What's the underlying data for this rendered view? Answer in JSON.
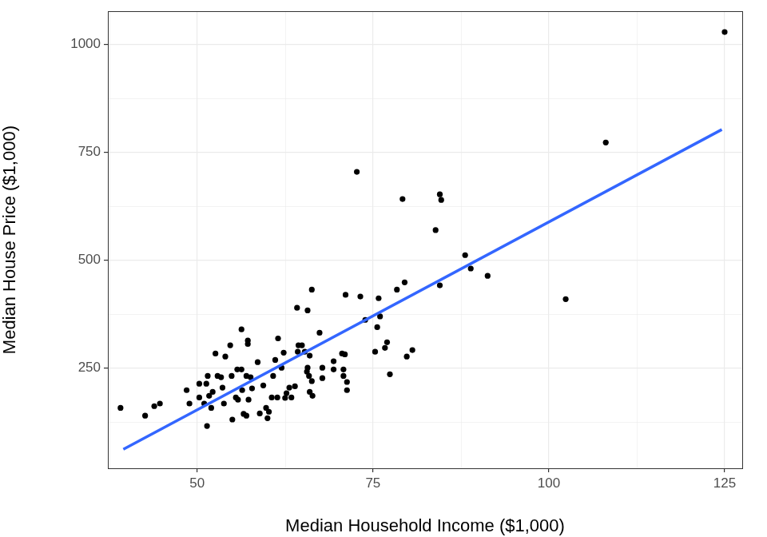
{
  "chart_data": {
    "type": "scatter",
    "x_label": "Median Household Income ($1,000)",
    "y_label": "Median House Price ($1,000)",
    "xlim": [
      37.3,
      127.5
    ],
    "ylim": [
      17,
      1076
    ],
    "xticks": [
      50,
      75,
      100,
      125
    ],
    "yticks": [
      250,
      500,
      750,
      1000
    ],
    "grid": true,
    "series": [
      {
        "type": "scatter",
        "color": "#000000",
        "marker": "circle",
        "x": [
          39.1,
          42.6,
          43.9,
          44.7,
          48.5,
          48.9,
          50.3,
          50.3,
          51.4,
          51.3,
          51.5,
          51.7,
          51.0,
          52.0,
          52.2,
          52.6,
          52.9,
          53.4,
          53.6,
          53.8,
          54.0,
          54.7,
          54.9,
          55.0,
          55.5,
          55.7,
          55.8,
          56.3,
          56.3,
          56.4,
          56.6,
          57.0,
          57.2,
          57.2,
          57.3,
          57.6,
          57.8,
          57.0,
          58.6,
          58.9,
          59.4,
          59.8,
          60.0,
          60.2,
          60.6,
          60.8,
          61.1,
          61.4,
          61.5,
          62.0,
          62.3,
          62.5,
          62.7,
          63.1,
          63.4,
          63.9,
          64.2,
          64.3,
          64.4,
          64.9,
          65.3,
          65.6,
          65.7,
          65.7,
          65.9,
          66.0,
          66.3,
          66.3,
          66.4,
          66.0,
          67.4,
          67.8,
          67.8,
          69.4,
          69.4,
          70.6,
          71.0,
          70.8,
          70.8,
          71.1,
          71.3,
          71.3,
          72.7,
          73.2,
          73.9,
          75.3,
          75.6,
          75.8,
          76.0,
          76.7,
          77.0,
          77.4,
          78.4,
          79.2,
          79.5,
          79.8,
          80.6,
          83.9,
          84.5,
          84.7,
          84.5,
          88.1,
          88.9,
          91.3,
          102.4,
          108.1,
          125.0
        ],
        "values": [
          157,
          139,
          161,
          167,
          198,
          167,
          213,
          181,
          115,
          213,
          231,
          185,
          167,
          157,
          194,
          283,
          231,
          228,
          204,
          167,
          276,
          302,
          231,
          130,
          181,
          246,
          176,
          339,
          246,
          198,
          143,
          231,
          305,
          313,
          176,
          228,
          202,
          139,
          263,
          144,
          209,
          157,
          133,
          148,
          181,
          231,
          268,
          181,
          318,
          250,
          285,
          180,
          191,
          204,
          181,
          207,
          389,
          287,
          302,
          302,
          287,
          241,
          383,
          250,
          231,
          194,
          431,
          219,
          185,
          278,
          331,
          250,
          226,
          246,
          265,
          283,
          281,
          246,
          231,
          419,
          217,
          198,
          704,
          415,
          361,
          287,
          344,
          411,
          369,
          296,
          309,
          235,
          431,
          641,
          448,
          276,
          291,
          569,
          652,
          639,
          441,
          511,
          480,
          463,
          409,
          772,
          1028
        ]
      },
      {
        "type": "line",
        "color": "#3366ff",
        "line_style": "solid",
        "x": [
          39.5,
          124.6
        ],
        "values": [
          61,
          802
        ]
      }
    ]
  }
}
